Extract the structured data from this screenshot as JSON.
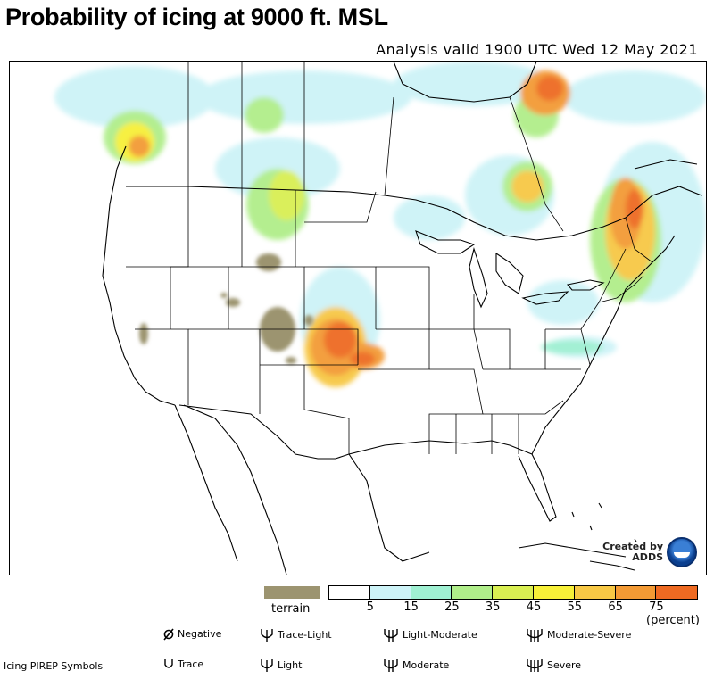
{
  "header": {
    "title": "Probability of icing at 9000 ft. MSL",
    "subtitle": "Analysis valid 1900 UTC Wed 12 May 2021"
  },
  "badge": {
    "line1": "Created by",
    "line2": "ADDS"
  },
  "legend": {
    "terrain_label": "terrain",
    "terrain_color": "#9c9470",
    "scale_colors": [
      "#ffffff",
      "#cdf3f7",
      "#9ff0d2",
      "#b0ee8a",
      "#d9ef52",
      "#f7f038",
      "#f7c845",
      "#f39a34",
      "#ee6a22"
    ],
    "scale_ticks": [
      "5",
      "15",
      "25",
      "35",
      "45",
      "55",
      "65",
      "75"
    ],
    "units": "(percent)"
  },
  "pirep": {
    "title": "Icing PIREP Symbols",
    "negative": "Negative",
    "trace": "Trace",
    "trace_light": "Trace-Light",
    "light": "Light",
    "light_moderate": "Light-Moderate",
    "moderate": "Moderate",
    "moderate_severe": "Moderate-Severe",
    "severe": "Severe"
  }
}
